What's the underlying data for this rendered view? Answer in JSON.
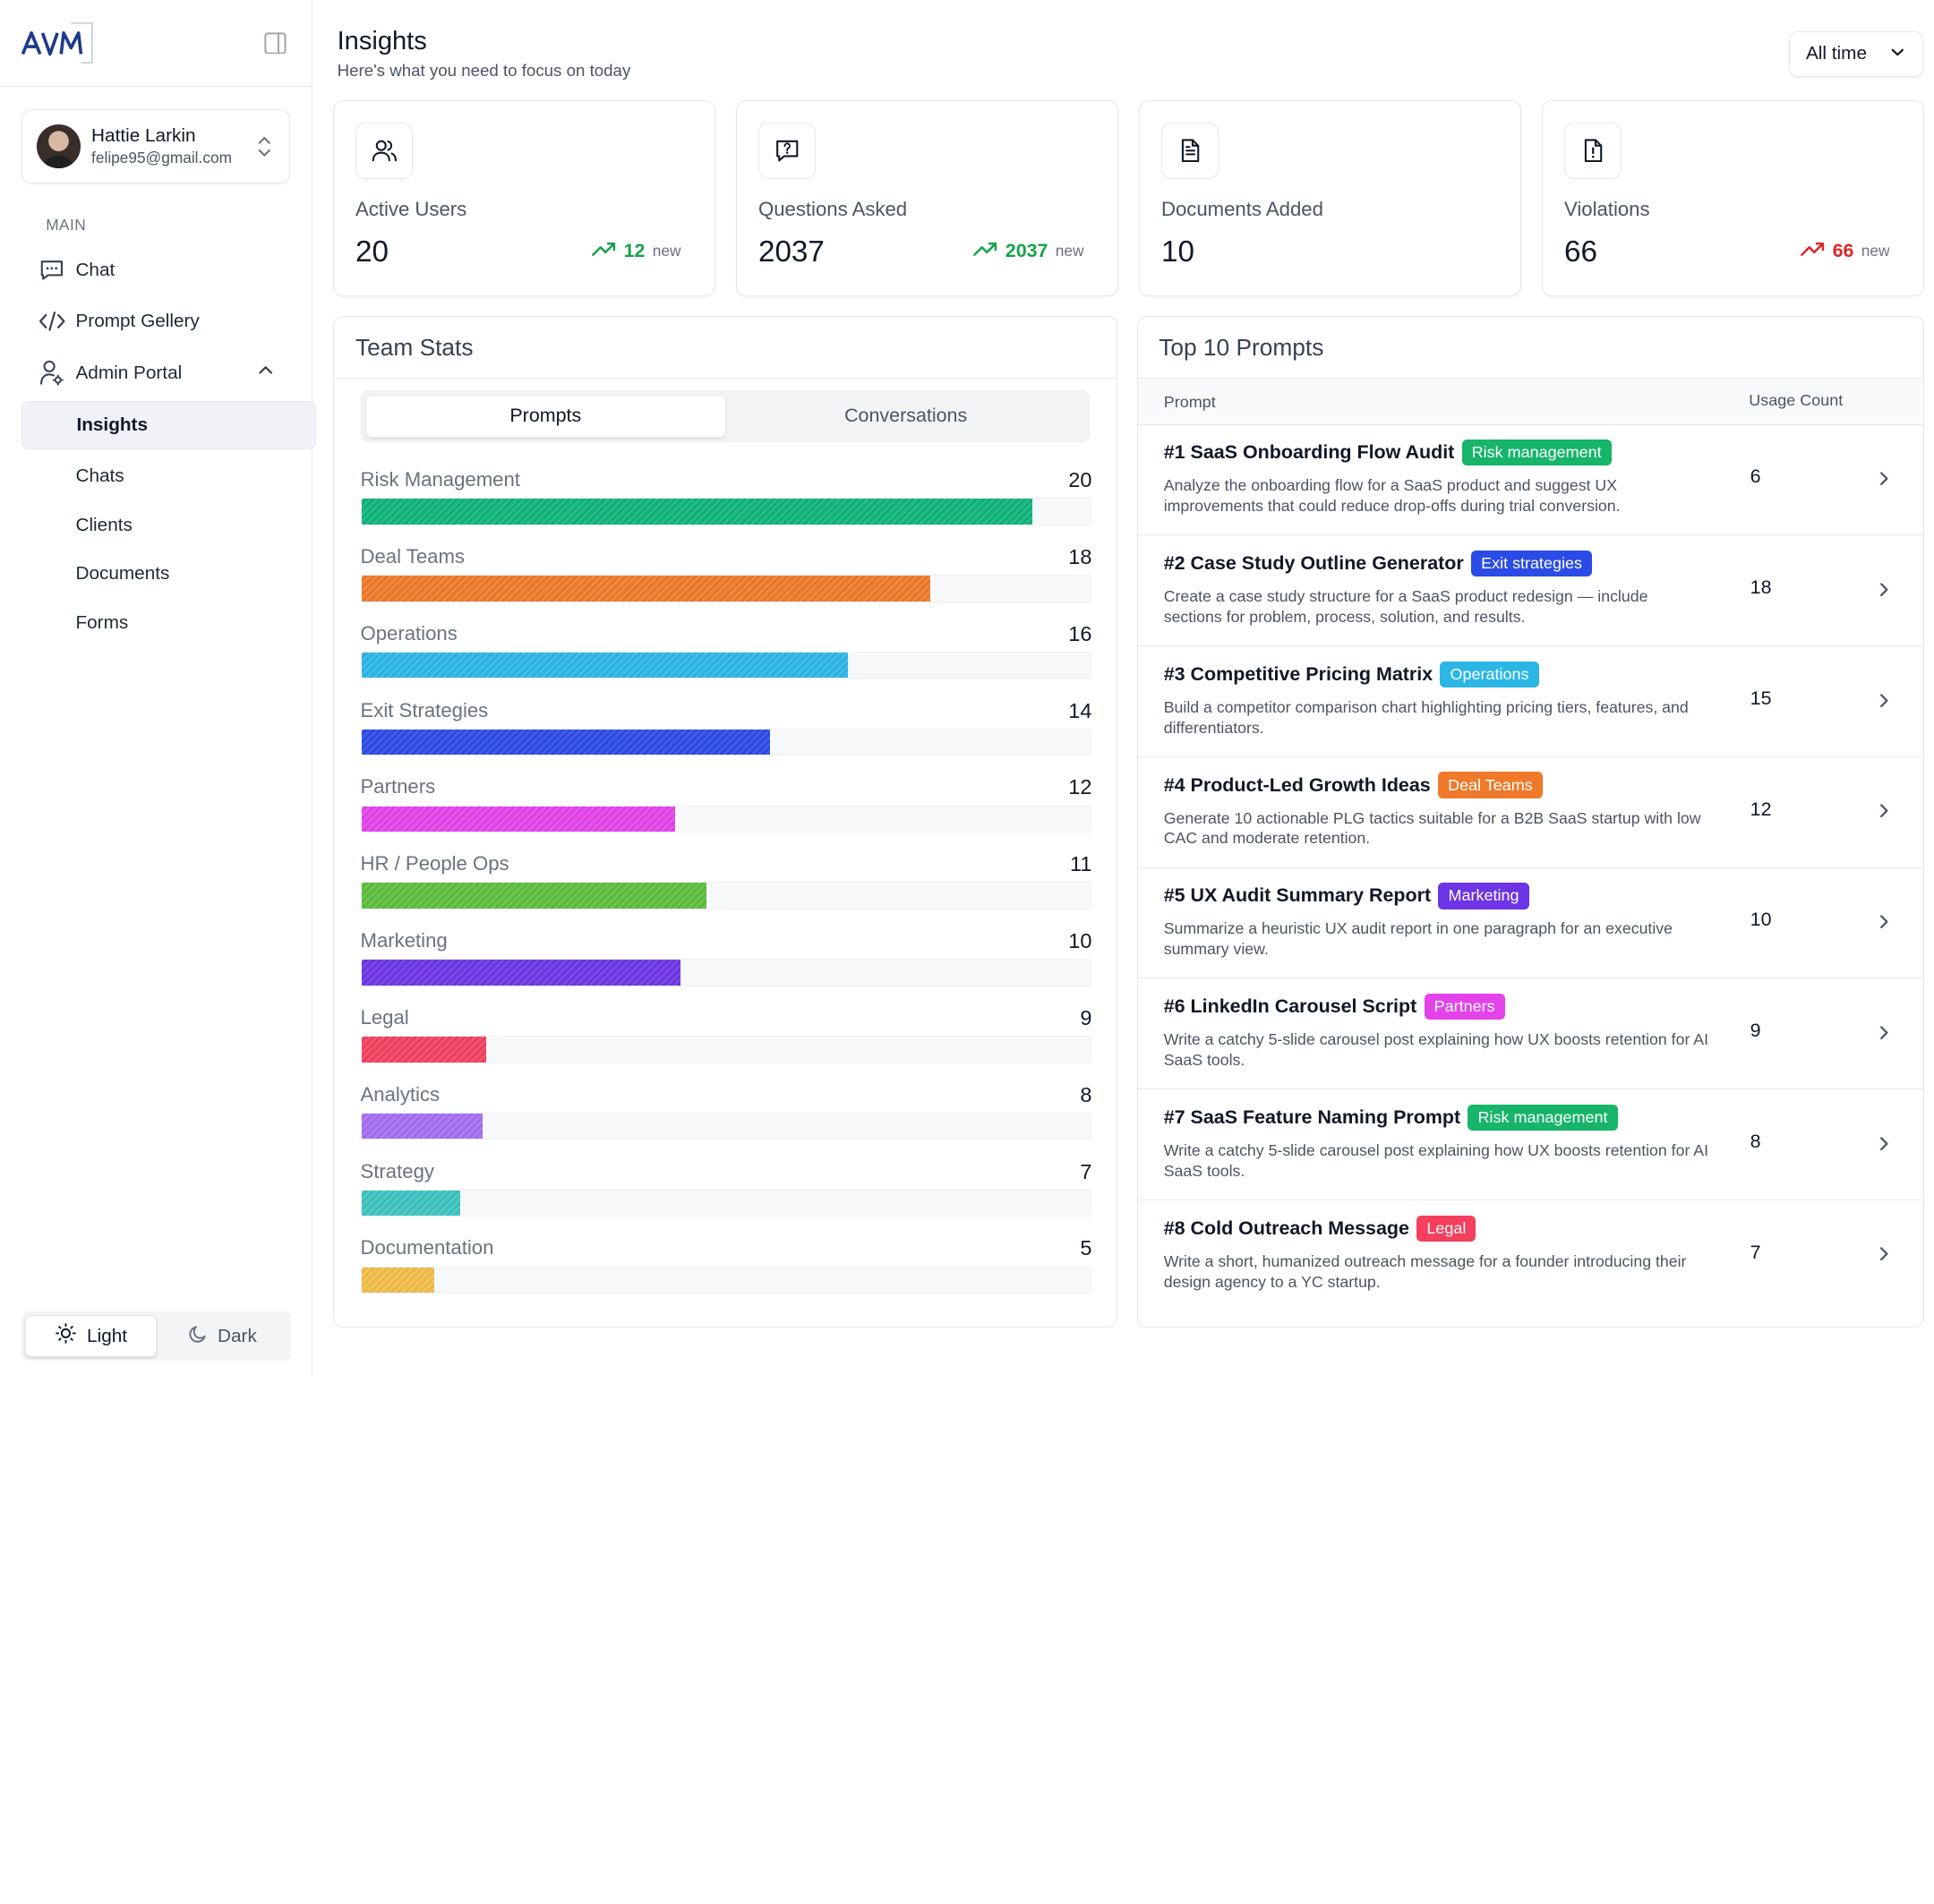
{
  "brand": {
    "logo_text": "AVM"
  },
  "user": {
    "name": "Hattie Larkin",
    "email": "felipe95@gmail.com"
  },
  "sidebar": {
    "section_label": "MAIN",
    "items": [
      {
        "label": "Chat",
        "icon": "chat-icon"
      },
      {
        "label": "Prompt Gellery",
        "icon": "code-icon"
      },
      {
        "label": "Admin Portal",
        "icon": "user-gear-icon"
      }
    ],
    "sub_items": [
      {
        "label": "Insights",
        "active": true
      },
      {
        "label": "Chats"
      },
      {
        "label": "Clients"
      },
      {
        "label": "Documents"
      },
      {
        "label": "Forms"
      }
    ],
    "theme": {
      "light": "Light",
      "dark": "Dark"
    }
  },
  "header": {
    "title": "Insights",
    "subtitle": "Here's what you need to focus on today",
    "range": "All time"
  },
  "stats": [
    {
      "label": "Active Users",
      "value": "20",
      "trend_value": "12",
      "trend_label": "new",
      "trend": "up",
      "color": "#16a34a",
      "icon": "users-icon"
    },
    {
      "label": "Questions Asked",
      "value": "2037",
      "trend_value": "2037",
      "trend_label": "new",
      "trend": "up",
      "color": "#16a34a",
      "icon": "question-message-icon"
    },
    {
      "label": "Documents Added",
      "value": "10",
      "icon": "document-icon"
    },
    {
      "label": "Violations",
      "value": "66",
      "trend_value": "66",
      "trend_label": "new",
      "trend": "up",
      "color": "#dc2626",
      "icon": "alert-file-icon"
    }
  ],
  "team_stats": {
    "title": "Team Stats",
    "tabs": [
      "Prompts",
      "Conversations"
    ],
    "active_tab": 0,
    "max": 21.7
  },
  "chart_data": {
    "type": "bar",
    "orientation": "horizontal",
    "categories": [
      "Risk Management",
      "Deal Teams",
      "Operations",
      "Exit Strategies",
      "Partners",
      "HR / People Ops",
      "Marketing",
      "Legal",
      "Analytics",
      "Strategy",
      "Documentation"
    ],
    "values": [
      20,
      18,
      16,
      14,
      12,
      11,
      10,
      9,
      8,
      7,
      5
    ],
    "bar_fill_fraction": [
      0.92,
      0.78,
      0.667,
      0.56,
      0.43,
      0.473,
      0.438,
      0.171,
      0.166,
      0.136,
      0.1
    ],
    "colors": [
      "#0fb57a",
      "#f07a2b",
      "#2bb7e6",
      "#2b4be8",
      "#e443ea",
      "#5dbe3d",
      "#6d35e6",
      "#f43f5e",
      "#a56df2",
      "#3cc4c1",
      "#f0bd47"
    ]
  },
  "top_prompts": {
    "title": "Top 10 Prompts",
    "col_prompt": "Prompt",
    "col_usage": "Usage Count",
    "rows": [
      {
        "title": "#1 SaaS Onboarding Flow Audit",
        "tag": "Risk management",
        "tag_color": "#16b56a",
        "desc": "Analyze the onboarding flow for a SaaS product and suggest UX improvements that could reduce drop-offs during trial conversion.",
        "count": "6"
      },
      {
        "title": "#2 Case Study Outline Generator",
        "tag": "Exit strategies",
        "tag_color": "#2b4be8",
        "desc": "Create a case study structure for a SaaS product redesign — include sections for problem, process, solution, and results.",
        "count": "18"
      },
      {
        "title": "#3 Competitive Pricing Matrix",
        "tag": "Operations",
        "tag_color": "#2bb7e6",
        "desc": "Build a competitor comparison chart highlighting pricing tiers, features, and differentiators.",
        "count": "15"
      },
      {
        "title": "#4 Product-Led Growth Ideas",
        "tag": "Deal Teams",
        "tag_color": "#f07a2b",
        "desc": "Generate 10 actionable PLG tactics suitable for a B2B SaaS startup with low CAC and moderate retention.",
        "count": "12"
      },
      {
        "title": "#5 UX Audit Summary Report",
        "tag": "Marketing",
        "tag_color": "#6d35e6",
        "desc": "Summarize a heuristic UX audit report in one paragraph for an executive summary view.",
        "count": "10"
      },
      {
        "title": "#6 LinkedIn Carousel Script",
        "tag": "Partners",
        "tag_color": "#e443ea",
        "desc": "Write a catchy 5-slide carousel post explaining how UX boosts retention for AI SaaS tools.",
        "count": "9"
      },
      {
        "title": "#7 SaaS Feature Naming Prompt",
        "tag": "Risk management",
        "tag_color": "#16b56a",
        "desc": "Write a catchy 5-slide carousel post explaining how UX boosts retention for AI SaaS tools.",
        "count": "8"
      },
      {
        "title": "#8 Cold Outreach Message",
        "tag": "Legal",
        "tag_color": "#f43f5e",
        "desc": "Write a short, humanized outreach message for a founder introducing their design agency to a YC startup.",
        "count": "7"
      }
    ]
  }
}
